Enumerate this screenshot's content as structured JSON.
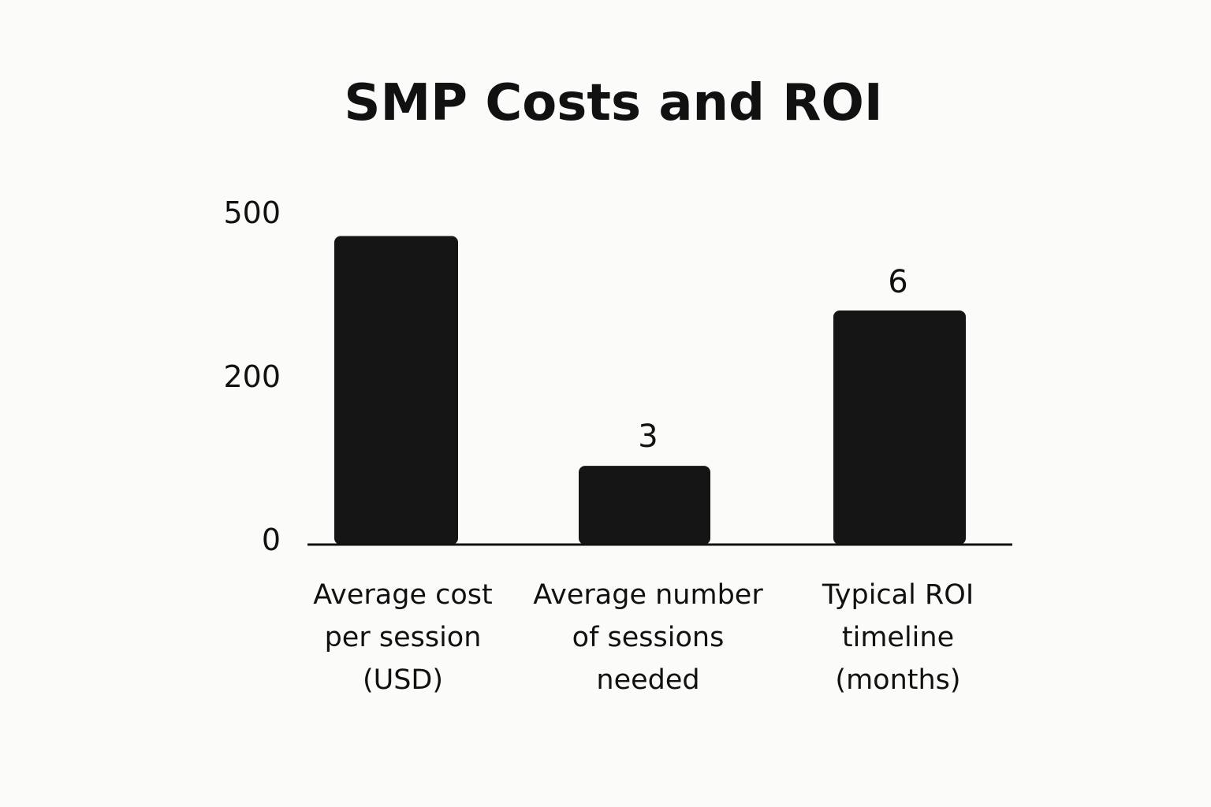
{
  "chart_data": {
    "type": "bar",
    "title": "SMP Costs and ROI",
    "xlabel": "",
    "ylabel": "",
    "categories": [
      [
        "Average cost",
        "per session",
        "(USD)"
      ],
      [
        "Average number",
        "of sessions",
        "needed"
      ],
      [
        "Typical ROI",
        "timeline",
        "(months)"
      ]
    ],
    "values": [
      450,
      3,
      6
    ],
    "value_labels": [
      "",
      "3",
      "6"
    ],
    "yticks": [
      "500",
      "200",
      "0"
    ],
    "legend": "none",
    "grid": false,
    "bar_color": "#151515",
    "axis_color": "#111111"
  }
}
